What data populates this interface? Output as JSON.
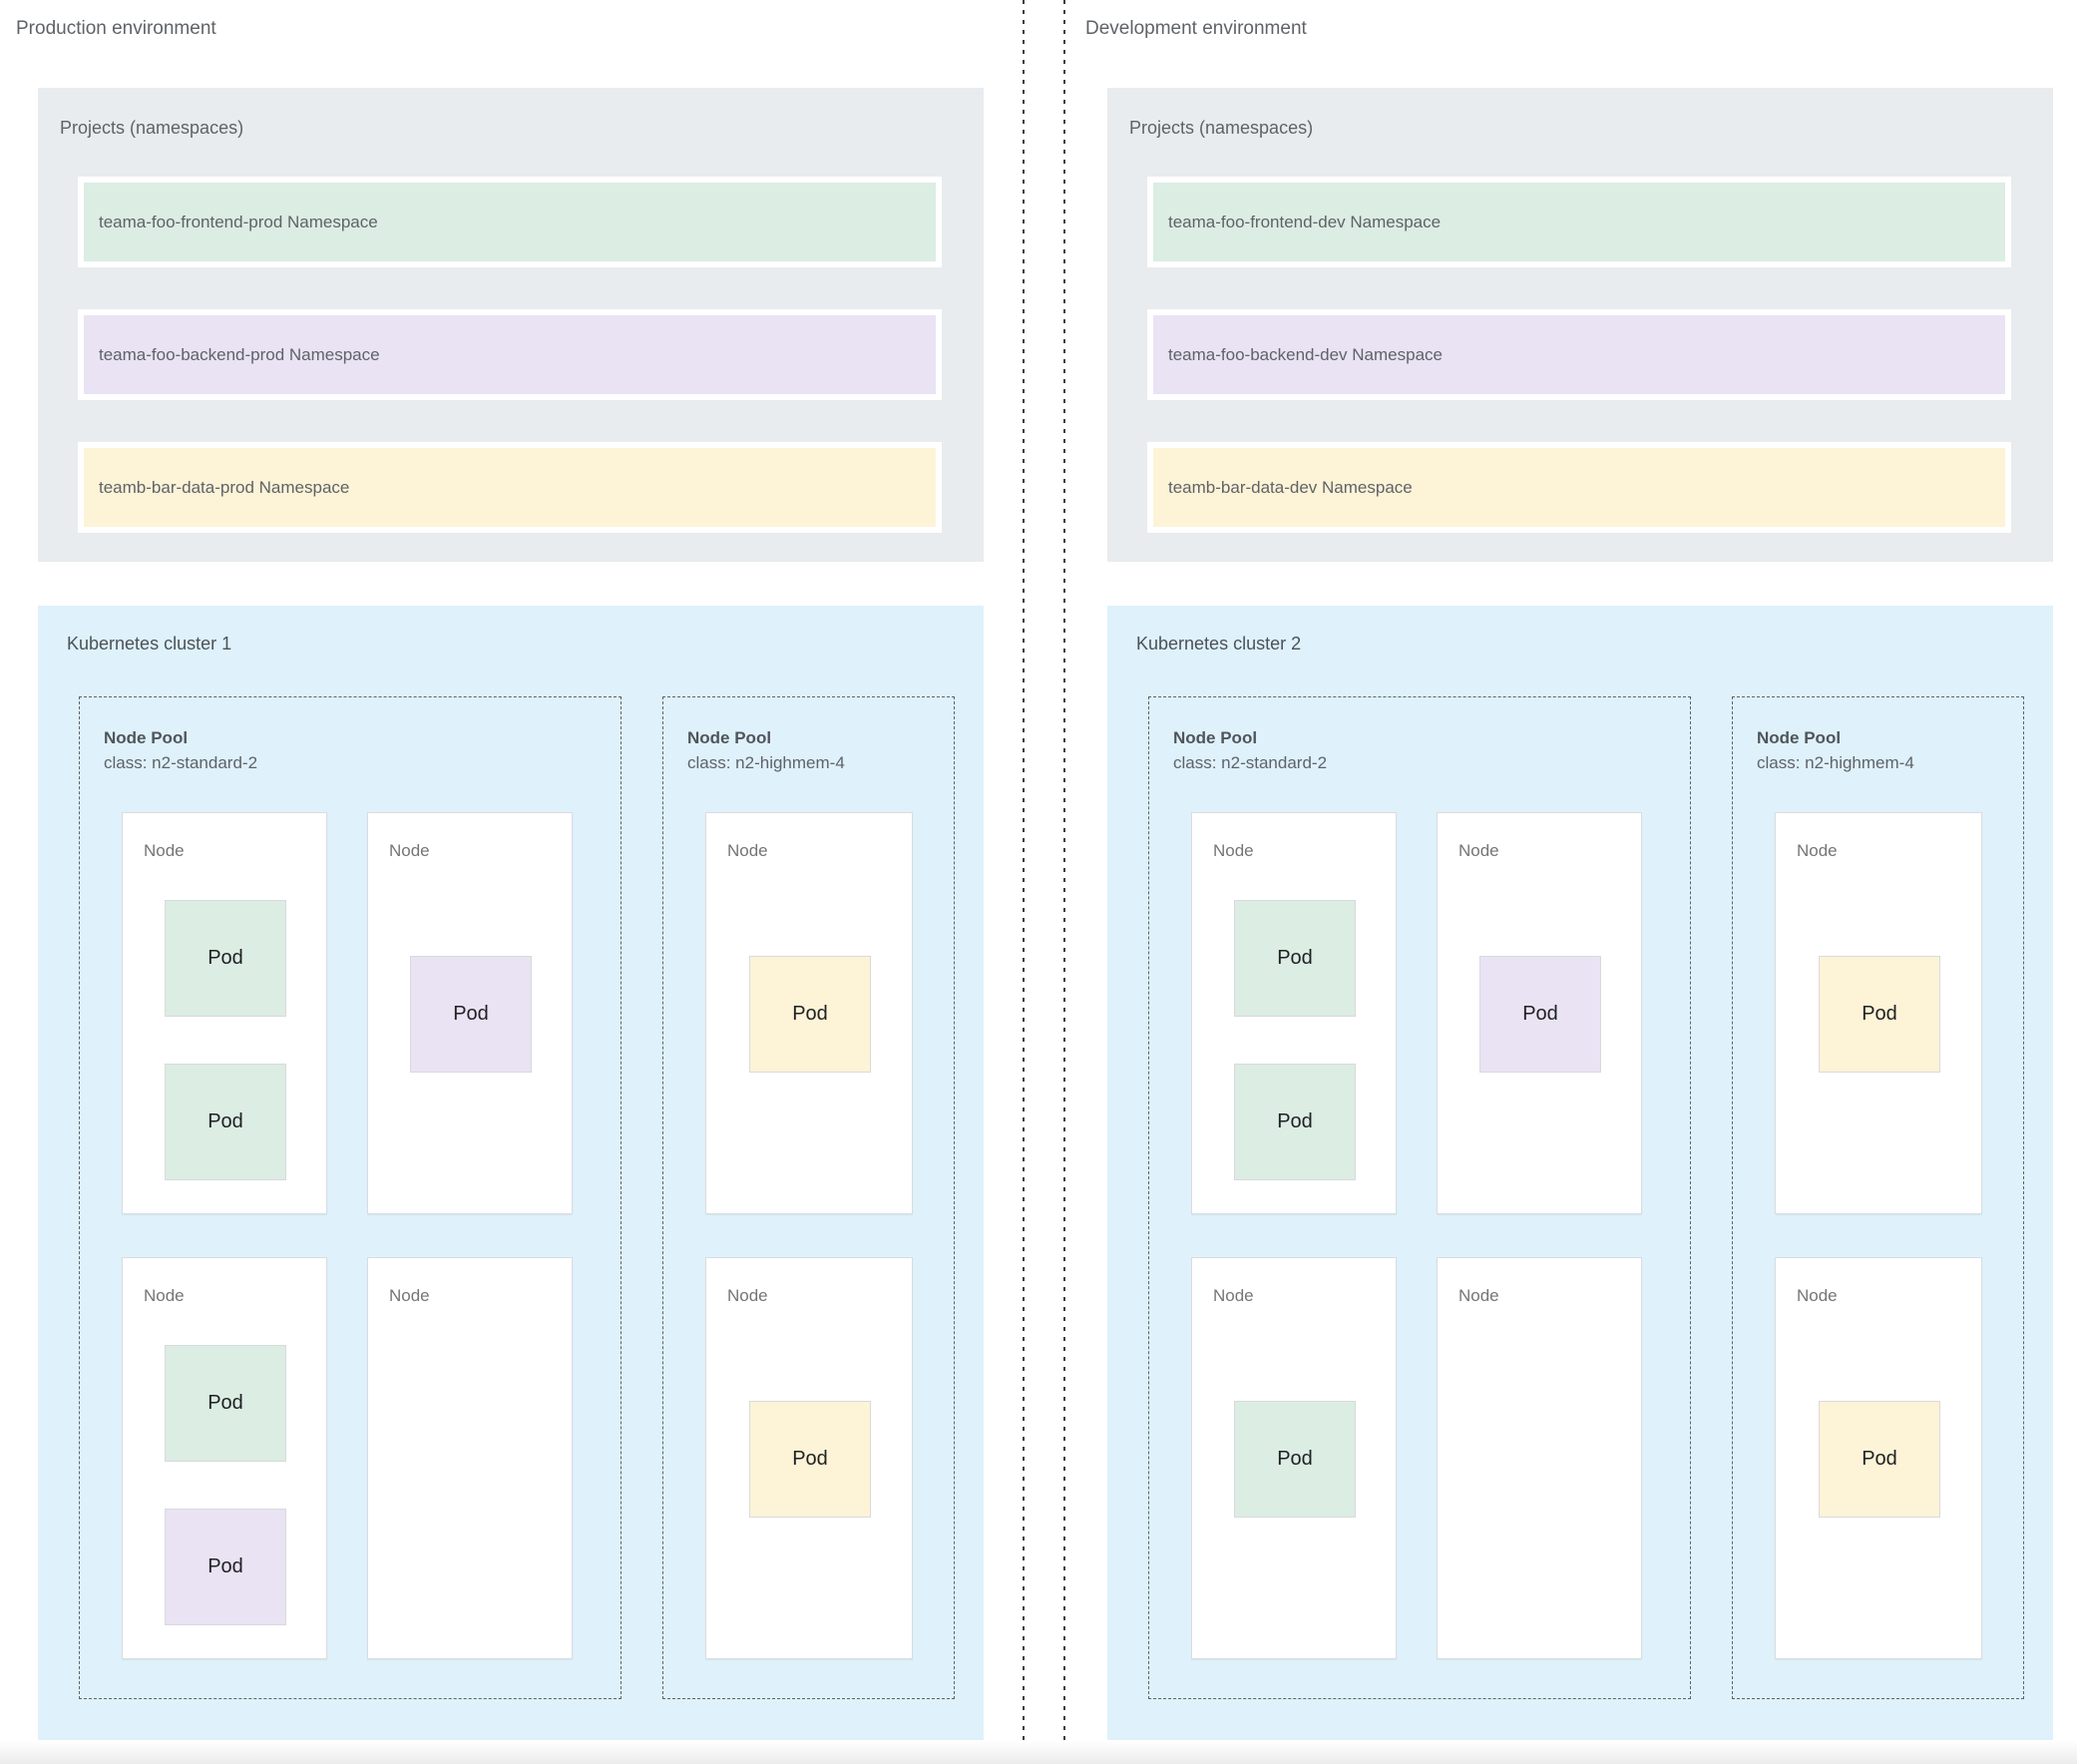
{
  "colors": {
    "green": "#dcede3",
    "purple": "#e9e3f4",
    "yellow": "#fdf3d7",
    "cluster_bg": "#dff1fb",
    "projects_bg": "#e8ecef",
    "node_bg": "#ffffff",
    "pod_border": "#d8dadc",
    "node_border": "#dadce0",
    "dashed_border": "#5f6368",
    "text_gray": "#5f6368",
    "text_dark": "#202124"
  },
  "environments": [
    {
      "title": "Production environment",
      "projects": {
        "title": "Projects (namespaces)",
        "namespaces": [
          {
            "label": "teama-foo-frontend-prod Namespace",
            "color": "green"
          },
          {
            "label": "teama-foo-backend-prod Namespace",
            "color": "purple"
          },
          {
            "label": "teamb-bar-data-prod Namespace",
            "color": "yellow"
          }
        ]
      },
      "cluster": {
        "title": "Kubernetes cluster 1",
        "node_pools": [
          {
            "title": "Node Pool",
            "machine_class": "class: n2-standard-2",
            "nodes": [
              {
                "label": "Node",
                "pods": [
                  {
                    "label": "Pod",
                    "color": "green"
                  },
                  {
                    "label": "Pod",
                    "color": "green"
                  }
                ]
              },
              {
                "label": "Node",
                "pods": [
                  {
                    "label": "Pod",
                    "color": "purple"
                  }
                ]
              },
              {
                "label": "Node",
                "pods": [
                  {
                    "label": "Pod",
                    "color": "green"
                  },
                  {
                    "label": "Pod",
                    "color": "purple"
                  }
                ]
              },
              {
                "label": "Node",
                "pods": []
              }
            ]
          },
          {
            "title": "Node Pool",
            "machine_class": "class: n2-highmem-4",
            "nodes": [
              {
                "label": "Node",
                "pods": [
                  {
                    "label": "Pod",
                    "color": "yellow"
                  }
                ]
              },
              {
                "label": "Node",
                "pods": [
                  {
                    "label": "Pod",
                    "color": "yellow"
                  }
                ]
              }
            ]
          }
        ]
      }
    },
    {
      "title": "Development environment",
      "projects": {
        "title": "Projects (namespaces)",
        "namespaces": [
          {
            "label": "teama-foo-frontend-dev Namespace",
            "color": "green"
          },
          {
            "label": "teama-foo-backend-dev Namespace",
            "color": "purple"
          },
          {
            "label": "teamb-bar-data-dev Namespace",
            "color": "yellow"
          }
        ]
      },
      "cluster": {
        "title": "Kubernetes cluster 2",
        "node_pools": [
          {
            "title": "Node Pool",
            "machine_class": "class: n2-standard-2",
            "nodes": [
              {
                "label": "Node",
                "pods": [
                  {
                    "label": "Pod",
                    "color": "green"
                  },
                  {
                    "label": "Pod",
                    "color": "green"
                  }
                ]
              },
              {
                "label": "Node",
                "pods": [
                  {
                    "label": "Pod",
                    "color": "purple"
                  }
                ]
              },
              {
                "label": "Node",
                "pods": [
                  {
                    "label": "Pod",
                    "color": "green"
                  }
                ]
              },
              {
                "label": "Node",
                "pods": []
              }
            ]
          },
          {
            "title": "Node Pool",
            "machine_class": "class: n2-highmem-4",
            "nodes": [
              {
                "label": "Node",
                "pods": [
                  {
                    "label": "Pod",
                    "color": "yellow"
                  }
                ]
              },
              {
                "label": "Node",
                "pods": [
                  {
                    "label": "Pod",
                    "color": "yellow"
                  }
                ]
              }
            ]
          }
        ]
      }
    }
  ]
}
